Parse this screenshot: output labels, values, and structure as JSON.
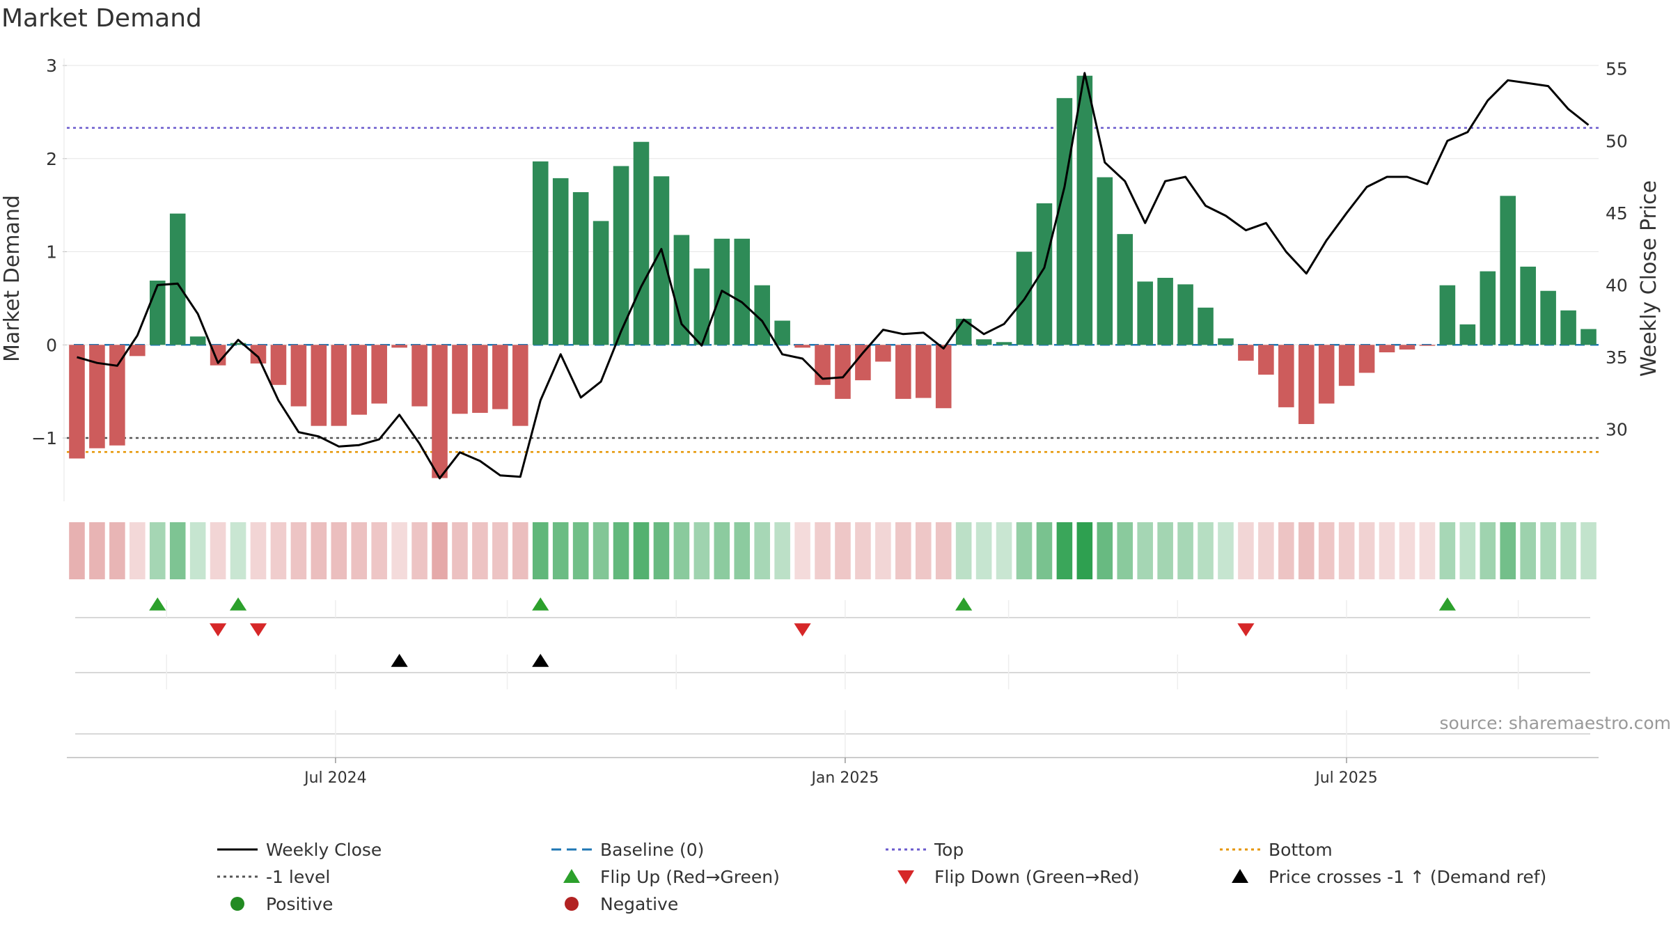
{
  "title": "Market Demand",
  "source_label": "source: sharemaestro.com",
  "colors": {
    "positive": "#2e8b57",
    "negative": "#cd5c5c",
    "close": "#000000",
    "baseline": "#1f77b4",
    "top": "#6a5acd",
    "bottom": "#e69500",
    "minus_one": "#555555",
    "flip_up": "#2ca02c",
    "flip_down": "#d62728",
    "cross": "#000000"
  },
  "legend": [
    {
      "key": "close",
      "label": "Weekly Close",
      "icon": "line-icon"
    },
    {
      "key": "baseline",
      "label": "Baseline (0)",
      "icon": "dashed-line-icon"
    },
    {
      "key": "top",
      "label": "Top",
      "icon": "dotted-line-icon"
    },
    {
      "key": "bottom",
      "label": "Bottom",
      "icon": "dotted-line-icon"
    },
    {
      "key": "minus_one",
      "label": "-1 level",
      "icon": "dotted-line-icon"
    },
    {
      "key": "flip_up",
      "label": "Flip Up (Red→Green)",
      "icon": "triangle-up-icon"
    },
    {
      "key": "flip_down",
      "label": "Flip Down (Green→Red)",
      "icon": "triangle-down-icon"
    },
    {
      "key": "cross",
      "label": "Price crosses -1 ↑ (Demand ref)",
      "icon": "triangle-up-icon"
    },
    {
      "key": "positive",
      "label": "Positive",
      "icon": "circle-icon"
    },
    {
      "key": "negative",
      "label": "Negative",
      "icon": "circle-icon"
    }
  ],
  "chart_data": {
    "type": "bar",
    "title": "Market Demand",
    "ylabel": "Market Demand",
    "y2label": "Weekly Close Price",
    "ylim": [
      -1.68,
      3.12
    ],
    "y2lim": [
      25.0,
      56.0
    ],
    "yticks": [
      -1,
      0,
      1,
      2,
      3
    ],
    "y2ticks": [
      30,
      35,
      40,
      45,
      50,
      55
    ],
    "ytick_labels": [
      "−1",
      "0",
      "1",
      "2",
      "3"
    ],
    "y2tick_labels": [
      "30",
      "35",
      "40",
      "45",
      "50",
      "55"
    ],
    "x_start": "2024-04-01",
    "x_range": [
      "2024-03-26",
      "2025-09-30"
    ],
    "xtick_labels": [
      {
        "date": "2024-07-01",
        "label": "Jul 2024"
      },
      {
        "date": "2025-01-01",
        "label": "Jan 2025"
      },
      {
        "date": "2025-07-01",
        "label": "Jul 2025"
      }
    ],
    "minor_date_marks": [
      "2024-05-01",
      "2024-09-01",
      "2024-11-01",
      "2025-03-01",
      "2025-05-01",
      "2025-09-01"
    ],
    "levels": {
      "baseline": 0,
      "top": 2.33,
      "bottom": -1.15,
      "minus_one": -1.0
    },
    "demand": [
      -1.22,
      -1.11,
      -1.08,
      -0.12,
      0.69,
      1.41,
      0.09,
      -0.22,
      0.02,
      -0.2,
      -0.43,
      -0.66,
      -0.87,
      -0.87,
      -0.75,
      -0.63,
      -0.03,
      -0.66,
      -1.43,
      -0.74,
      -0.73,
      -0.69,
      -0.87,
      1.97,
      1.79,
      1.64,
      1.33,
      1.92,
      2.18,
      1.81,
      1.18,
      0.82,
      1.14,
      1.14,
      0.64,
      0.26,
      -0.03,
      -0.43,
      -0.58,
      -0.38,
      -0.18,
      -0.58,
      -0.57,
      -0.68,
      0.28,
      0.06,
      0.03,
      1.0,
      1.52,
      2.65,
      2.89,
      1.8,
      1.19,
      0.68,
      0.72,
      0.65,
      0.4,
      0.07,
      -0.17,
      -0.32,
      -0.67,
      -0.85,
      -0.63,
      -0.44,
      -0.3,
      -0.08,
      -0.05,
      -0.01,
      0.64,
      0.22,
      0.79,
      1.6,
      0.84,
      0.58,
      0.37,
      0.17
    ],
    "weekly_close": [
      35.0,
      34.6,
      34.4,
      36.5,
      40.0,
      40.1,
      38.0,
      34.6,
      36.2,
      35.0,
      32.0,
      29.8,
      29.5,
      28.8,
      28.9,
      29.3,
      31.0,
      29.0,
      26.6,
      28.4,
      27.8,
      26.8,
      26.7,
      32.0,
      35.2,
      32.2,
      33.3,
      36.8,
      39.9,
      42.5,
      37.3,
      35.8,
      39.6,
      38.8,
      37.5,
      35.2,
      34.9,
      33.5,
      33.6,
      35.3,
      36.9,
      36.6,
      36.7,
      35.6,
      37.6,
      36.6,
      37.3,
      39.0,
      41.2,
      46.8,
      54.7,
      48.5,
      47.2,
      44.3,
      47.2,
      47.5,
      45.5,
      44.8,
      43.8,
      44.3,
      42.3,
      40.8,
      43.1,
      45.0,
      46.8,
      47.5,
      47.5,
      47.0,
      50.0,
      50.6,
      52.8,
      54.2,
      54.0,
      53.8,
      52.2,
      51.1
    ],
    "flip_up_idx": [
      4,
      8,
      23,
      44,
      68
    ],
    "flip_down_idx": [
      7,
      9,
      36,
      58
    ],
    "cross_up_idx": [
      16,
      23
    ]
  }
}
